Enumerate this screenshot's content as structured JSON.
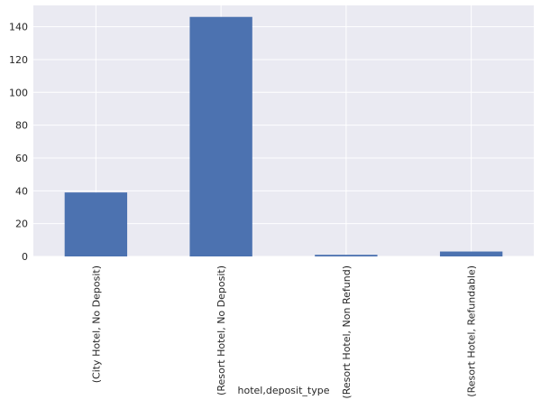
{
  "chart_data": {
    "type": "bar",
    "title": "",
    "xlabel": "hotel,deposit_type",
    "ylabel": "",
    "categories": [
      "(City Hotel, No Deposit)",
      "(Resort Hotel, No Deposit)",
      "(Resort Hotel, Non Refund)",
      "(Resort Hotel, Refundable)"
    ],
    "values": [
      39,
      146,
      1,
      3
    ],
    "ylim": [
      0,
      153
    ],
    "yticks": [
      0,
      20,
      40,
      60,
      80,
      100,
      120,
      140
    ],
    "grid": true,
    "legend": "none",
    "colors": {
      "bar": "#4c72b0",
      "background": "#eaeaf2",
      "grid": "#ffffff"
    }
  }
}
